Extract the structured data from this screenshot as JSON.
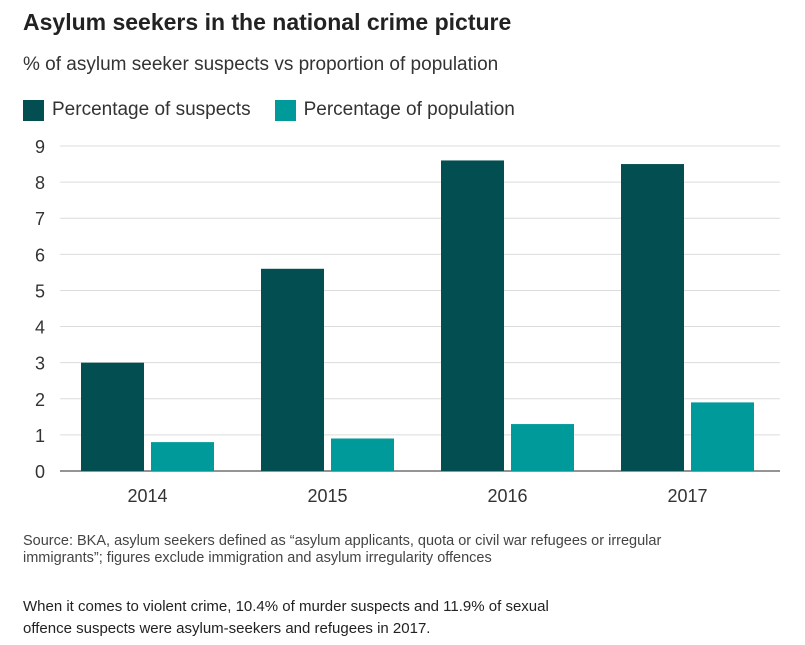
{
  "header": {
    "title": "Asylum seekers in the national crime picture",
    "subtitle": "% of asylum seeker suspects vs proportion of population"
  },
  "chart_data": {
    "type": "bar",
    "title": "Asylum seekers in the national crime picture",
    "subtitle": "% of asylum seeker suspects vs proportion of population",
    "categories": [
      "2014",
      "2015",
      "2016",
      "2017"
    ],
    "series": [
      {
        "name": "Percentage of suspects",
        "color": "#034e50",
        "values": [
          3.0,
          5.6,
          8.6,
          8.5
        ]
      },
      {
        "name": "Percentage of population",
        "color": "#009a9a",
        "values": [
          0.8,
          0.9,
          1.3,
          1.9
        ]
      }
    ],
    "ylim": [
      0,
      9
    ],
    "yticks": [
      "0",
      "1",
      "2",
      "3",
      "4",
      "5",
      "6",
      "7",
      "8",
      "9"
    ],
    "xlabel": "",
    "ylabel": "",
    "grid": true,
    "legend_position": "top-left"
  },
  "footer": {
    "source": "Source: BKA, asylum seekers defined as “asylum applicants, quota or civil war refugees or irregular immigrants”; figures exclude immigration and asylum irregularity offences",
    "caption": "When it comes to violent crime, 10.4% of murder suspects and 11.9% of sexual offence suspects were asylum-seekers and refugees in 2017."
  }
}
